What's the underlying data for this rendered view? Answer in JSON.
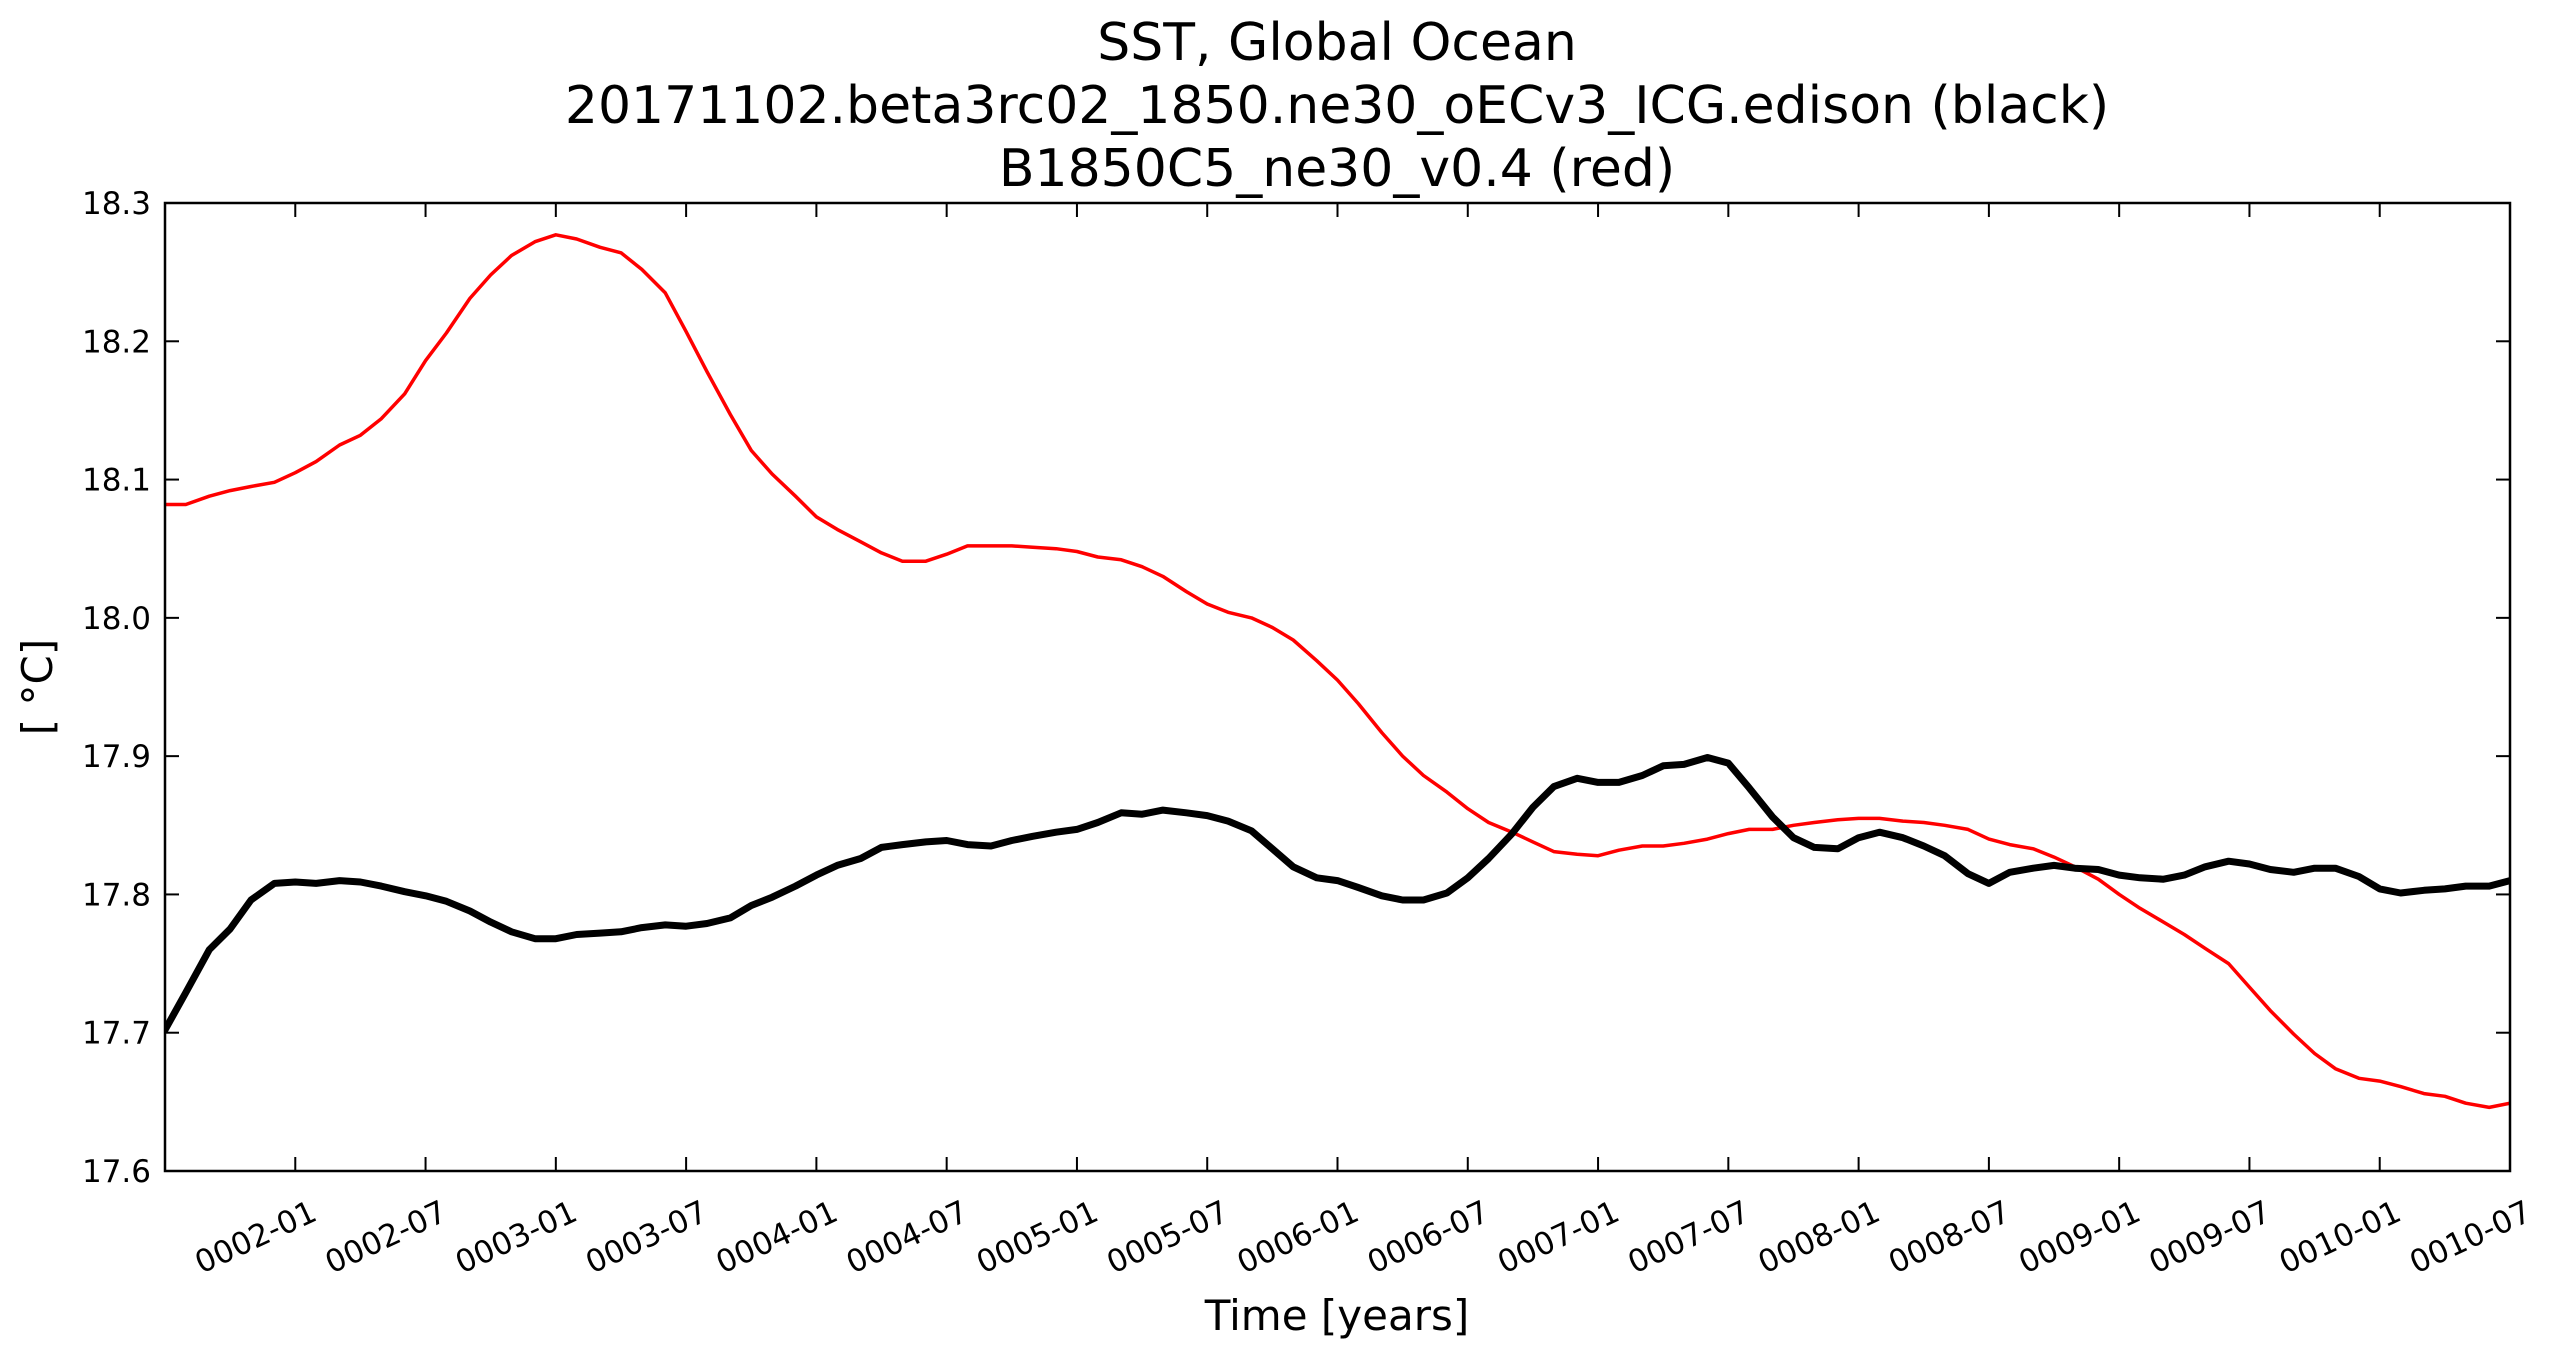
{
  "chart_data": {
    "type": "line",
    "title": [
      "SST, Global Ocean",
      "20171102.beta3rc02_1850.ne30_oECv3_ICG.edison (black)",
      "B1850C5_ne30_v0.4 (red)"
    ],
    "xlabel": "Time [years]",
    "ylabel": "[ °C]",
    "xlim": [
      1.5,
      10.5
    ],
    "ylim": [
      17.6,
      18.3
    ],
    "xticks": [
      {
        "value": 2.0,
        "label": "0002-01"
      },
      {
        "value": 2.5,
        "label": "0002-07"
      },
      {
        "value": 3.0,
        "label": "0003-01"
      },
      {
        "value": 3.5,
        "label": "0003-07"
      },
      {
        "value": 4.0,
        "label": "0004-01"
      },
      {
        "value": 4.5,
        "label": "0004-07"
      },
      {
        "value": 5.0,
        "label": "0005-01"
      },
      {
        "value": 5.5,
        "label": "0005-07"
      },
      {
        "value": 6.0,
        "label": "0006-01"
      },
      {
        "value": 6.5,
        "label": "0006-07"
      },
      {
        "value": 7.0,
        "label": "0007-01"
      },
      {
        "value": 7.5,
        "label": "0007-07"
      },
      {
        "value": 8.0,
        "label": "0008-01"
      },
      {
        "value": 8.5,
        "label": "0008-07"
      },
      {
        "value": 9.0,
        "label": "0009-01"
      },
      {
        "value": 9.5,
        "label": "0009-07"
      },
      {
        "value": 10.0,
        "label": "0010-01"
      },
      {
        "value": 10.5,
        "label": "0010-07"
      }
    ],
    "yticks": [
      {
        "value": 17.6,
        "label": "17.6"
      },
      {
        "value": 17.7,
        "label": "17.7"
      },
      {
        "value": 17.8,
        "label": "17.8"
      },
      {
        "value": 17.9,
        "label": "17.9"
      },
      {
        "value": 18.0,
        "label": "18.0"
      },
      {
        "value": 18.1,
        "label": "18.1"
      },
      {
        "value": 18.2,
        "label": "18.2"
      },
      {
        "value": 18.3,
        "label": "18.3"
      }
    ],
    "series": [
      {
        "name": "B1850C5_ne30_v0.4",
        "color": "#ff0000",
        "points": [
          [
            1.5,
            18.082
          ],
          [
            1.58,
            18.082
          ],
          [
            1.67,
            18.088
          ],
          [
            1.75,
            18.092
          ],
          [
            1.83,
            18.095
          ],
          [
            1.92,
            18.098
          ],
          [
            2.0,
            18.105
          ],
          [
            2.08,
            18.113
          ],
          [
            2.17,
            18.125
          ],
          [
            2.25,
            18.132
          ],
          [
            2.33,
            18.144
          ],
          [
            2.42,
            18.162
          ],
          [
            2.5,
            18.186
          ],
          [
            2.58,
            18.206
          ],
          [
            2.67,
            18.231
          ],
          [
            2.75,
            18.248
          ],
          [
            2.83,
            18.262
          ],
          [
            2.92,
            18.272
          ],
          [
            3.0,
            18.277
          ],
          [
            3.08,
            18.274
          ],
          [
            3.17,
            18.268
          ],
          [
            3.25,
            18.264
          ],
          [
            3.33,
            18.252
          ],
          [
            3.42,
            18.235
          ],
          [
            3.5,
            18.207
          ],
          [
            3.58,
            18.178
          ],
          [
            3.67,
            18.147
          ],
          [
            3.75,
            18.121
          ],
          [
            3.83,
            18.104
          ],
          [
            3.92,
            18.088
          ],
          [
            4.0,
            18.073
          ],
          [
            4.08,
            18.064
          ],
          [
            4.17,
            18.055
          ],
          [
            4.25,
            18.047
          ],
          [
            4.33,
            18.041
          ],
          [
            4.42,
            18.041
          ],
          [
            4.5,
            18.046
          ],
          [
            4.58,
            18.052
          ],
          [
            4.67,
            18.052
          ],
          [
            4.75,
            18.052
          ],
          [
            4.83,
            18.051
          ],
          [
            4.92,
            18.05
          ],
          [
            5.0,
            18.048
          ],
          [
            5.08,
            18.044
          ],
          [
            5.17,
            18.042
          ],
          [
            5.25,
            18.037
          ],
          [
            5.33,
            18.03
          ],
          [
            5.42,
            18.019
          ],
          [
            5.5,
            18.01
          ],
          [
            5.58,
            18.004
          ],
          [
            5.67,
            18.0
          ],
          [
            5.75,
            17.993
          ],
          [
            5.83,
            17.984
          ],
          [
            5.92,
            17.969
          ],
          [
            6.0,
            17.955
          ],
          [
            6.08,
            17.938
          ],
          [
            6.17,
            17.917
          ],
          [
            6.25,
            17.9
          ],
          [
            6.33,
            17.886
          ],
          [
            6.42,
            17.874
          ],
          [
            6.5,
            17.862
          ],
          [
            6.58,
            17.852
          ],
          [
            6.67,
            17.845
          ],
          [
            6.75,
            17.838
          ],
          [
            6.83,
            17.831
          ],
          [
            6.92,
            17.829
          ],
          [
            7.0,
            17.828
          ],
          [
            7.08,
            17.832
          ],
          [
            7.17,
            17.835
          ],
          [
            7.25,
            17.835
          ],
          [
            7.33,
            17.837
          ],
          [
            7.42,
            17.84
          ],
          [
            7.5,
            17.844
          ],
          [
            7.58,
            17.847
          ],
          [
            7.67,
            17.847
          ],
          [
            7.75,
            17.85
          ],
          [
            7.83,
            17.852
          ],
          [
            7.92,
            17.854
          ],
          [
            8.0,
            17.855
          ],
          [
            8.08,
            17.855
          ],
          [
            8.17,
            17.853
          ],
          [
            8.25,
            17.852
          ],
          [
            8.33,
            17.85
          ],
          [
            8.42,
            17.847
          ],
          [
            8.5,
            17.84
          ],
          [
            8.58,
            17.836
          ],
          [
            8.67,
            17.833
          ],
          [
            8.75,
            17.827
          ],
          [
            8.83,
            17.82
          ],
          [
            8.92,
            17.811
          ],
          [
            9.0,
            17.8
          ],
          [
            9.08,
            17.79
          ],
          [
            9.17,
            17.78
          ],
          [
            9.25,
            17.771
          ],
          [
            9.33,
            17.761
          ],
          [
            9.42,
            17.75
          ],
          [
            9.5,
            17.733
          ],
          [
            9.58,
            17.716
          ],
          [
            9.67,
            17.699
          ],
          [
            9.75,
            17.685
          ],
          [
            9.83,
            17.674
          ],
          [
            9.92,
            17.667
          ],
          [
            10.0,
            17.665
          ],
          [
            10.08,
            17.661
          ],
          [
            10.17,
            17.656
          ],
          [
            10.25,
            17.654
          ],
          [
            10.33,
            17.649
          ],
          [
            10.42,
            17.646
          ],
          [
            10.5,
            17.649
          ]
        ]
      },
      {
        "name": "20171102.beta3rc02_1850.ne30_oECv3_ICG.edison",
        "color": "#000000",
        "points": [
          [
            1.5,
            17.702
          ],
          [
            1.58,
            17.729
          ],
          [
            1.67,
            17.76
          ],
          [
            1.75,
            17.775
          ],
          [
            1.83,
            17.796
          ],
          [
            1.92,
            17.808
          ],
          [
            2.0,
            17.809
          ],
          [
            2.08,
            17.808
          ],
          [
            2.17,
            17.81
          ],
          [
            2.25,
            17.809
          ],
          [
            2.33,
            17.806
          ],
          [
            2.42,
            17.802
          ],
          [
            2.5,
            17.799
          ],
          [
            2.58,
            17.795
          ],
          [
            2.67,
            17.788
          ],
          [
            2.75,
            17.78
          ],
          [
            2.83,
            17.773
          ],
          [
            2.92,
            17.768
          ],
          [
            3.0,
            17.768
          ],
          [
            3.08,
            17.771
          ],
          [
            3.17,
            17.772
          ],
          [
            3.25,
            17.773
          ],
          [
            3.33,
            17.776
          ],
          [
            3.42,
            17.778
          ],
          [
            3.5,
            17.777
          ],
          [
            3.58,
            17.779
          ],
          [
            3.67,
            17.783
          ],
          [
            3.75,
            17.792
          ],
          [
            3.83,
            17.798
          ],
          [
            3.92,
            17.806
          ],
          [
            4.0,
            17.814
          ],
          [
            4.08,
            17.821
          ],
          [
            4.17,
            17.826
          ],
          [
            4.25,
            17.834
          ],
          [
            4.33,
            17.836
          ],
          [
            4.42,
            17.838
          ],
          [
            4.5,
            17.839
          ],
          [
            4.58,
            17.836
          ],
          [
            4.67,
            17.835
          ],
          [
            4.75,
            17.839
          ],
          [
            4.83,
            17.842
          ],
          [
            4.92,
            17.845
          ],
          [
            5.0,
            17.847
          ],
          [
            5.08,
            17.852
          ],
          [
            5.17,
            17.859
          ],
          [
            5.25,
            17.858
          ],
          [
            5.33,
            17.861
          ],
          [
            5.42,
            17.859
          ],
          [
            5.5,
            17.857
          ],
          [
            5.58,
            17.853
          ],
          [
            5.67,
            17.846
          ],
          [
            5.75,
            17.833
          ],
          [
            5.83,
            17.82
          ],
          [
            5.92,
            17.812
          ],
          [
            6.0,
            17.81
          ],
          [
            6.08,
            17.805
          ],
          [
            6.17,
            17.799
          ],
          [
            6.25,
            17.796
          ],
          [
            6.33,
            17.796
          ],
          [
            6.42,
            17.801
          ],
          [
            6.5,
            17.812
          ],
          [
            6.58,
            17.826
          ],
          [
            6.67,
            17.844
          ],
          [
            6.75,
            17.863
          ],
          [
            6.83,
            17.878
          ],
          [
            6.92,
            17.884
          ],
          [
            7.0,
            17.881
          ],
          [
            7.08,
            17.881
          ],
          [
            7.17,
            17.886
          ],
          [
            7.25,
            17.893
          ],
          [
            7.33,
            17.894
          ],
          [
            7.42,
            17.899
          ],
          [
            7.5,
            17.895
          ],
          [
            7.58,
            17.877
          ],
          [
            7.67,
            17.856
          ],
          [
            7.75,
            17.841
          ],
          [
            7.83,
            17.834
          ],
          [
            7.92,
            17.833
          ],
          [
            8.0,
            17.841
          ],
          [
            8.08,
            17.845
          ],
          [
            8.17,
            17.841
          ],
          [
            8.25,
            17.835
          ],
          [
            8.33,
            17.828
          ],
          [
            8.42,
            17.815
          ],
          [
            8.5,
            17.808
          ],
          [
            8.58,
            17.816
          ],
          [
            8.67,
            17.819
          ],
          [
            8.75,
            17.821
          ],
          [
            8.83,
            17.819
          ],
          [
            8.92,
            17.818
          ],
          [
            9.0,
            17.814
          ],
          [
            9.08,
            17.812
          ],
          [
            9.17,
            17.811
          ],
          [
            9.25,
            17.814
          ],
          [
            9.33,
            17.82
          ],
          [
            9.42,
            17.824
          ],
          [
            9.5,
            17.822
          ],
          [
            9.58,
            17.818
          ],
          [
            9.67,
            17.816
          ],
          [
            9.75,
            17.819
          ],
          [
            9.83,
            17.819
          ],
          [
            9.92,
            17.813
          ],
          [
            10.0,
            17.804
          ],
          [
            10.08,
            17.801
          ],
          [
            10.17,
            17.803
          ],
          [
            10.25,
            17.804
          ],
          [
            10.33,
            17.806
          ],
          [
            10.42,
            17.806
          ],
          [
            10.5,
            17.81
          ]
        ]
      }
    ]
  }
}
